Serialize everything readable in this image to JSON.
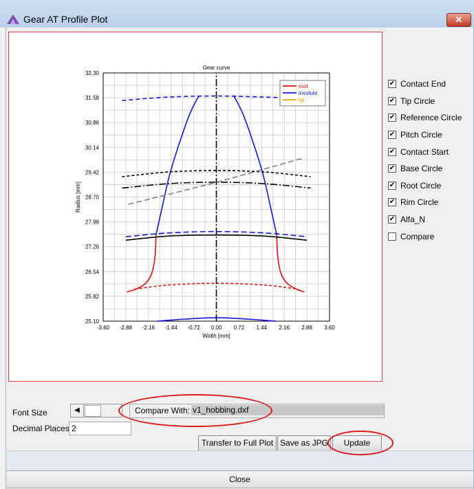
{
  "window": {
    "title": "Gear AT Profile Plot",
    "close_glyph": "✕"
  },
  "chart_data": {
    "type": "line",
    "title": "Gear curve",
    "xlabel": "Width [mm]",
    "ylabel": "Radius [mm]",
    "xlim": [
      -3.6,
      3.6
    ],
    "ylim": [
      25.1,
      32.3
    ],
    "xticks": [
      "-3.60",
      "-2.88",
      "-2.16",
      "-1.44",
      "-0.72",
      "0.00",
      "0.72",
      "1.44",
      "2.16",
      "2.88",
      "3.60"
    ],
    "yticks": [
      "25.10",
      "25.82",
      "26.54",
      "27.26",
      "27.98",
      "28.70",
      "29.42",
      "30.14",
      "30.86",
      "31.58",
      "32.30"
    ],
    "grid": true,
    "legend_position": "top-right",
    "legend": [
      {
        "name": "root",
        "color": "#e01010"
      },
      {
        "name": "involute",
        "color": "#1414e0"
      },
      {
        "name": "tip",
        "color": "#f0a000"
      }
    ],
    "series": [
      {
        "name": "tip-circle",
        "color": "#1414e0",
        "dash": "6,4",
        "x": [
          -3.0,
          -1.5,
          0,
          1.5,
          2.88
        ],
        "y": [
          31.5,
          31.6,
          31.63,
          31.6,
          31.55
        ]
      },
      {
        "name": "involute-left",
        "color": "#1414e0",
        "dash": "",
        "x": [
          -0.56,
          -0.85,
          -1.2,
          -1.5,
          -1.75,
          -1.92
        ],
        "y": [
          31.63,
          31.1,
          30.2,
          29.3,
          28.3,
          27.6
        ]
      },
      {
        "name": "involute-right",
        "color": "#1414e0",
        "dash": "",
        "x": [
          0.56,
          0.85,
          1.2,
          1.5,
          1.75,
          1.92
        ],
        "y": [
          31.63,
          31.1,
          30.2,
          29.3,
          28.3,
          27.6
        ]
      },
      {
        "name": "root-left",
        "color": "#e01010",
        "dash": "",
        "x": [
          -1.92,
          -1.95,
          -2.05,
          -2.25,
          -2.55,
          -2.85
        ],
        "y": [
          27.6,
          27.0,
          26.5,
          26.2,
          26.03,
          25.95
        ]
      },
      {
        "name": "root-right",
        "color": "#e01010",
        "dash": "",
        "x": [
          1.92,
          1.95,
          2.05,
          2.25,
          2.55,
          2.8
        ],
        "y": [
          27.6,
          27.0,
          26.5,
          26.2,
          26.03,
          25.95
        ]
      },
      {
        "name": "root-dashed",
        "color": "#e01010",
        "dash": "4,3",
        "x": [
          -2.6,
          -1.5,
          0,
          1.5,
          2.6
        ],
        "y": [
          26.03,
          26.15,
          26.2,
          26.15,
          26.03
        ]
      },
      {
        "name": "contact-end",
        "color": "#000000",
        "dash": "4,3",
        "x": [
          -3.0,
          -1.5,
          0,
          1.5,
          3.0
        ],
        "y": [
          29.29,
          29.43,
          29.47,
          29.43,
          29.29
        ]
      },
      {
        "name": "pitch-circle",
        "color": "#000000",
        "dash": "10,3,2,3",
        "x": [
          -3.0,
          -1.5,
          0,
          1.5,
          3.0
        ],
        "y": [
          28.96,
          29.09,
          29.13,
          29.09,
          28.96
        ]
      },
      {
        "name": "alfa-n",
        "color": "#808080",
        "dash": "8,4",
        "x": [
          -2.8,
          0,
          2.8
        ],
        "y": [
          28.49,
          29.13,
          29.84
        ]
      },
      {
        "name": "contact-start",
        "color": "#1414e0",
        "dash": "8,4",
        "x": [
          -2.88,
          -1.5,
          0,
          1.5,
          2.88
        ],
        "y": [
          27.55,
          27.66,
          27.7,
          27.66,
          27.55
        ]
      },
      {
        "name": "base-circle",
        "color": "#000000",
        "dash": "",
        "x": [
          -2.88,
          -1.5,
          0,
          1.5,
          2.88
        ],
        "y": [
          27.45,
          27.57,
          27.6,
          27.57,
          27.45
        ]
      },
      {
        "name": "rim-circle",
        "color": "#1414e0",
        "dash": "",
        "x": [
          -1.9,
          -1.0,
          0,
          1.0,
          1.9
        ],
        "y": [
          25.1,
          25.16,
          25.2,
          25.16,
          25.1
        ]
      },
      {
        "name": "centerline",
        "color": "#000000",
        "dash": "10,3,2,3",
        "x": [
          0,
          0
        ],
        "y": [
          25.1,
          32.3
        ]
      }
    ]
  },
  "options": [
    {
      "label": "Contact End",
      "checked": true
    },
    {
      "label": "Tip Circle",
      "checked": true
    },
    {
      "label": "Reference Circle",
      "checked": true
    },
    {
      "label": "Pitch Circle",
      "checked": true
    },
    {
      "label": "Contact Start",
      "checked": true
    },
    {
      "label": "Base Circle",
      "checked": true
    },
    {
      "label": "Root Circle",
      "checked": true
    },
    {
      "label": "Rim Circle",
      "checked": true
    },
    {
      "label": "Alfa_N",
      "checked": true
    },
    {
      "label": "Compare",
      "checked": false
    }
  ],
  "controls": {
    "font_size_label": "Font Size",
    "decimal_places_label": "Decimal Places",
    "decimal_places_value": "2",
    "compare_label": "Compare With:",
    "compare_value": "v1_hobbing.dxf",
    "transfer_button": "Transfer to Full Plot",
    "save_button": "Save as JPG",
    "update_button": "Update",
    "close_button": "Close",
    "scroll_left_glyph": "◀"
  },
  "colors": {
    "annotation": "#e01818",
    "titlebar": "#b9d1ea"
  }
}
